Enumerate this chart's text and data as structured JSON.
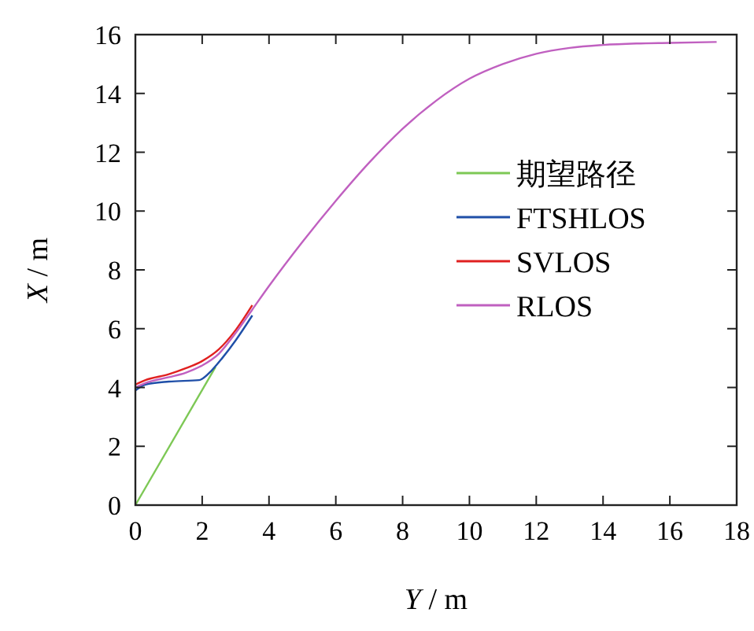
{
  "chart_data": {
    "type": "line",
    "xlabel": "Y / m",
    "ylabel": "X / m",
    "xlim": [
      0,
      18
    ],
    "ylim": [
      0,
      16
    ],
    "xticks": [
      0,
      2,
      4,
      6,
      8,
      10,
      12,
      14,
      16,
      18
    ],
    "yticks": [
      0,
      2,
      4,
      6,
      8,
      10,
      12,
      14,
      16
    ],
    "grid": false,
    "legend": "right",
    "marker": "none",
    "line_style": "solid",
    "series": [
      {
        "name": "期望路径",
        "color": "#7dc855",
        "x": [
          0,
          2.4
        ],
        "values": [
          0,
          4.7
        ]
      },
      {
        "name": "FTSHLOS",
        "color": "#1f4fa8",
        "x": [
          0,
          0.3,
          1,
          1.9,
          2.3,
          2.6,
          3,
          3.5
        ],
        "values": [
          3.9,
          4.1,
          4.2,
          4.25,
          4.6,
          5.0,
          5.6,
          6.45
        ]
      },
      {
        "name": "SVLOS",
        "color": "#e02020",
        "x": [
          0,
          0.3,
          1,
          1.5,
          2,
          2.5,
          3,
          3.5
        ],
        "values": [
          4.1,
          4.25,
          4.45,
          4.65,
          4.9,
          5.3,
          5.95,
          6.8
        ]
      },
      {
        "name": "RLOS",
        "color": "#c060c0",
        "x": [
          0,
          0.3,
          1,
          1.5,
          2,
          2.5,
          3,
          3.5,
          4,
          5,
          6,
          7,
          8,
          9,
          10,
          11,
          12,
          13,
          14,
          15,
          16,
          17.4
        ],
        "values": [
          4.0,
          4.15,
          4.35,
          4.5,
          4.75,
          5.15,
          5.85,
          6.65,
          7.45,
          8.95,
          10.35,
          11.65,
          12.8,
          13.75,
          14.5,
          15.0,
          15.35,
          15.55,
          15.65,
          15.7,
          15.72,
          15.75
        ]
      }
    ]
  }
}
